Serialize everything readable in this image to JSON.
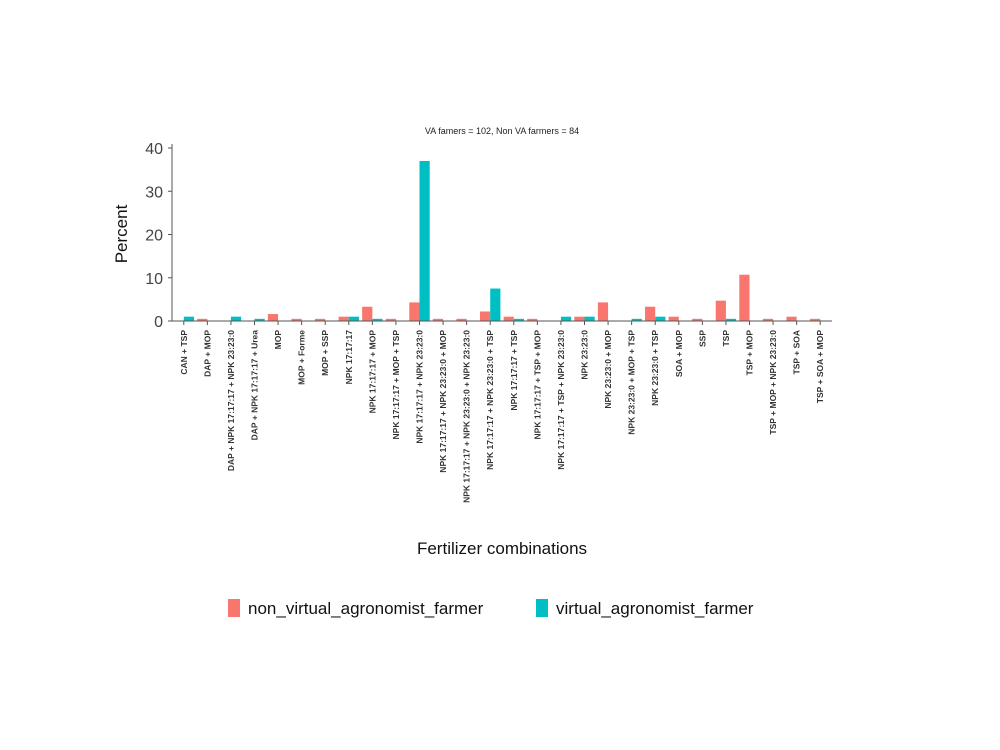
{
  "chart_data": {
    "type": "bar",
    "subtitle": "VA famers = 102, Non VA farmers = 84",
    "xlabel": "Fertilizer combinations",
    "ylabel": "Percent",
    "ylim": [
      0,
      40
    ],
    "yticks": [
      0,
      10,
      20,
      30,
      40
    ],
    "grid": false,
    "legend_position": "bottom",
    "categories": [
      "CAN + TSP",
      "DAP + MOP",
      "DAP + NPK 17:17:17 + NPK 23:23:0",
      "DAP + NPK 17:17:17 + Urea",
      "MOP",
      "MOP + Forme",
      "MOP + SSP",
      "NPK 17:17:17",
      "NPK 17:17:17 + MOP",
      "NPK 17:17:17 + MOP + TSP",
      "NPK 17:17:17 + NPK 23:23:0",
      "NPK 17:17:17 + NPK 23:23:0 + MOP",
      "NPK 17:17:17 + NPK 23:23:0 + NPK 23:23:0",
      "NPK 17:17:17 + NPK 23:23:0 + TSP",
      "NPK 17:17:17 + TSP",
      "NPK 17:17:17 + TSP + MOP",
      "NPK 17:17:17 + TSP + NPK 23:23:0",
      "NPK 23:23:0",
      "NPK 23:23:0 + MOP",
      "NPK 23:23:0 + MOP + TSP",
      "NPK 23:23:0 + TSP",
      "SOA + MOP",
      "SSP",
      "TSP",
      "TSP + MOP",
      "TSP + MOP + NPK 23:23:0",
      "TSP + SOA",
      "TSP + SOA + MOP"
    ],
    "series": [
      {
        "name": "non_virtual_agronomist_farmer",
        "color": "#F8766D",
        "values": [
          0,
          0.5,
          0,
          0,
          1.6,
          0.5,
          0.5,
          1.0,
          3.3,
          0.5,
          4.3,
          0.5,
          0.5,
          2.2,
          1.0,
          0.5,
          0,
          1.0,
          4.3,
          0,
          3.3,
          1.0,
          0.5,
          4.7,
          10.7,
          0.5,
          1.0,
          0.5
        ]
      },
      {
        "name": "virtual_agronomist_farmer",
        "color": "#00BFC4",
        "values": [
          1.0,
          0,
          1.0,
          0.5,
          0,
          0,
          0,
          1.0,
          0.5,
          0,
          37.0,
          0,
          0,
          7.5,
          0.5,
          0,
          1.0,
          1.0,
          0,
          0.5,
          1.0,
          0,
          0,
          0.5,
          0,
          0,
          0,
          0
        ]
      }
    ]
  }
}
